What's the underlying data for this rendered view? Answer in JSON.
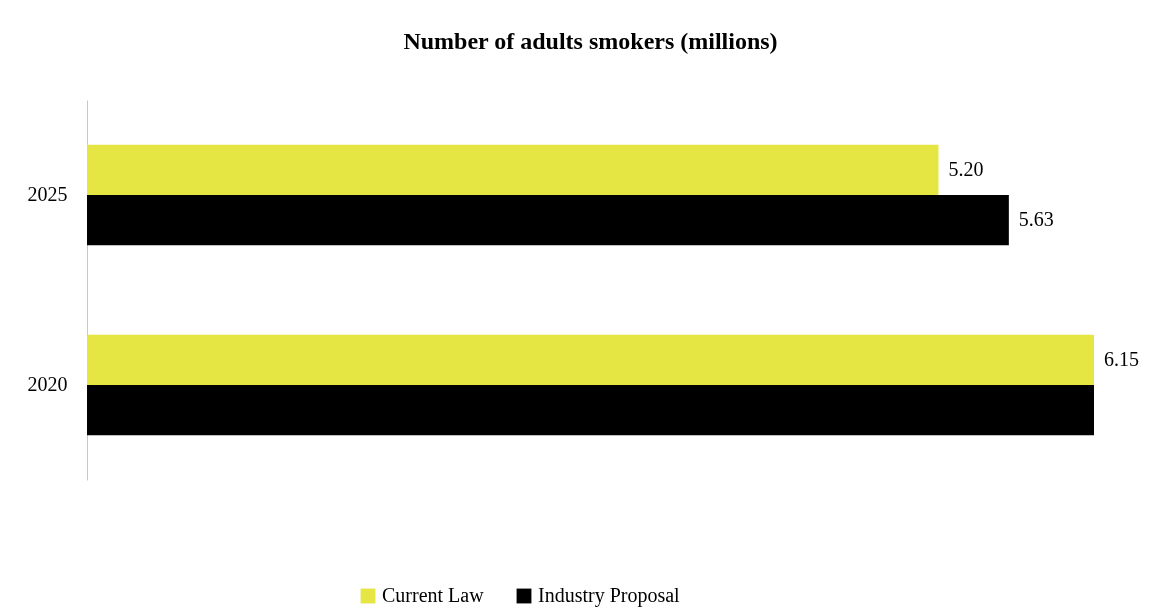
{
  "chart_data": {
    "type": "bar",
    "orientation": "horizontal",
    "tick_labels": "y",
    "title": "Number of adults smokers (millions)",
    "categories": [
      "2025",
      "2020"
    ],
    "series": [
      {
        "name": "Current Law",
        "color": "#e5e544",
        "values": [
          5.2,
          6.15
        ],
        "value_labels": [
          "5.20",
          "6.15"
        ]
      },
      {
        "name": "Industry Proposal",
        "color": "#000000",
        "values": [
          5.63,
          6.15
        ],
        "value_labels": [
          "5.63",
          null
        ]
      }
    ],
    "legend": "bottom"
  }
}
